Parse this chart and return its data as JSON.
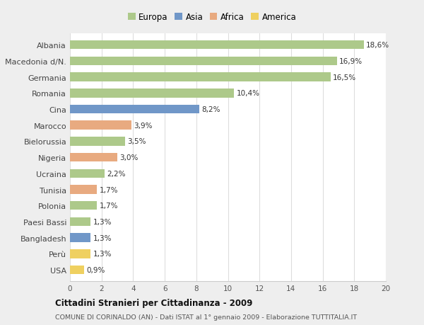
{
  "categories": [
    "Albania",
    "Macedonia d/N.",
    "Germania",
    "Romania",
    "Cina",
    "Marocco",
    "Bielorussia",
    "Nigeria",
    "Ucraina",
    "Tunisia",
    "Polonia",
    "Paesi Bassi",
    "Bangladesh",
    "Perù",
    "USA"
  ],
  "values": [
    18.6,
    16.9,
    16.5,
    10.4,
    8.2,
    3.9,
    3.5,
    3.0,
    2.2,
    1.7,
    1.7,
    1.3,
    1.3,
    1.3,
    0.9
  ],
  "labels": [
    "18,6%",
    "16,9%",
    "16,5%",
    "10,4%",
    "8,2%",
    "3,9%",
    "3,5%",
    "3,0%",
    "2,2%",
    "1,7%",
    "1,7%",
    "1,3%",
    "1,3%",
    "1,3%",
    "0,9%"
  ],
  "continents": [
    "Europa",
    "Europa",
    "Europa",
    "Europa",
    "Asia",
    "Africa",
    "Europa",
    "Africa",
    "Europa",
    "Africa",
    "Europa",
    "Europa",
    "Asia",
    "America",
    "America"
  ],
  "continent_colors": {
    "Europa": "#adc98a",
    "Asia": "#7097c8",
    "Africa": "#e8aa80",
    "America": "#efd060"
  },
  "legend_order": [
    "Europa",
    "Asia",
    "Africa",
    "America"
  ],
  "title": "Cittadini Stranieri per Cittadinanza - 2009",
  "subtitle": "COMUNE DI CORINALDO (AN) - Dati ISTAT al 1° gennaio 2009 - Elaborazione TUTTITALIA.IT",
  "xlim": [
    0,
    20
  ],
  "xticks": [
    0,
    2,
    4,
    6,
    8,
    10,
    12,
    14,
    16,
    18,
    20
  ],
  "background_color": "#eeeeee",
  "plot_bg_color": "#ffffff",
  "grid_color": "#dddddd",
  "bar_height": 0.55
}
